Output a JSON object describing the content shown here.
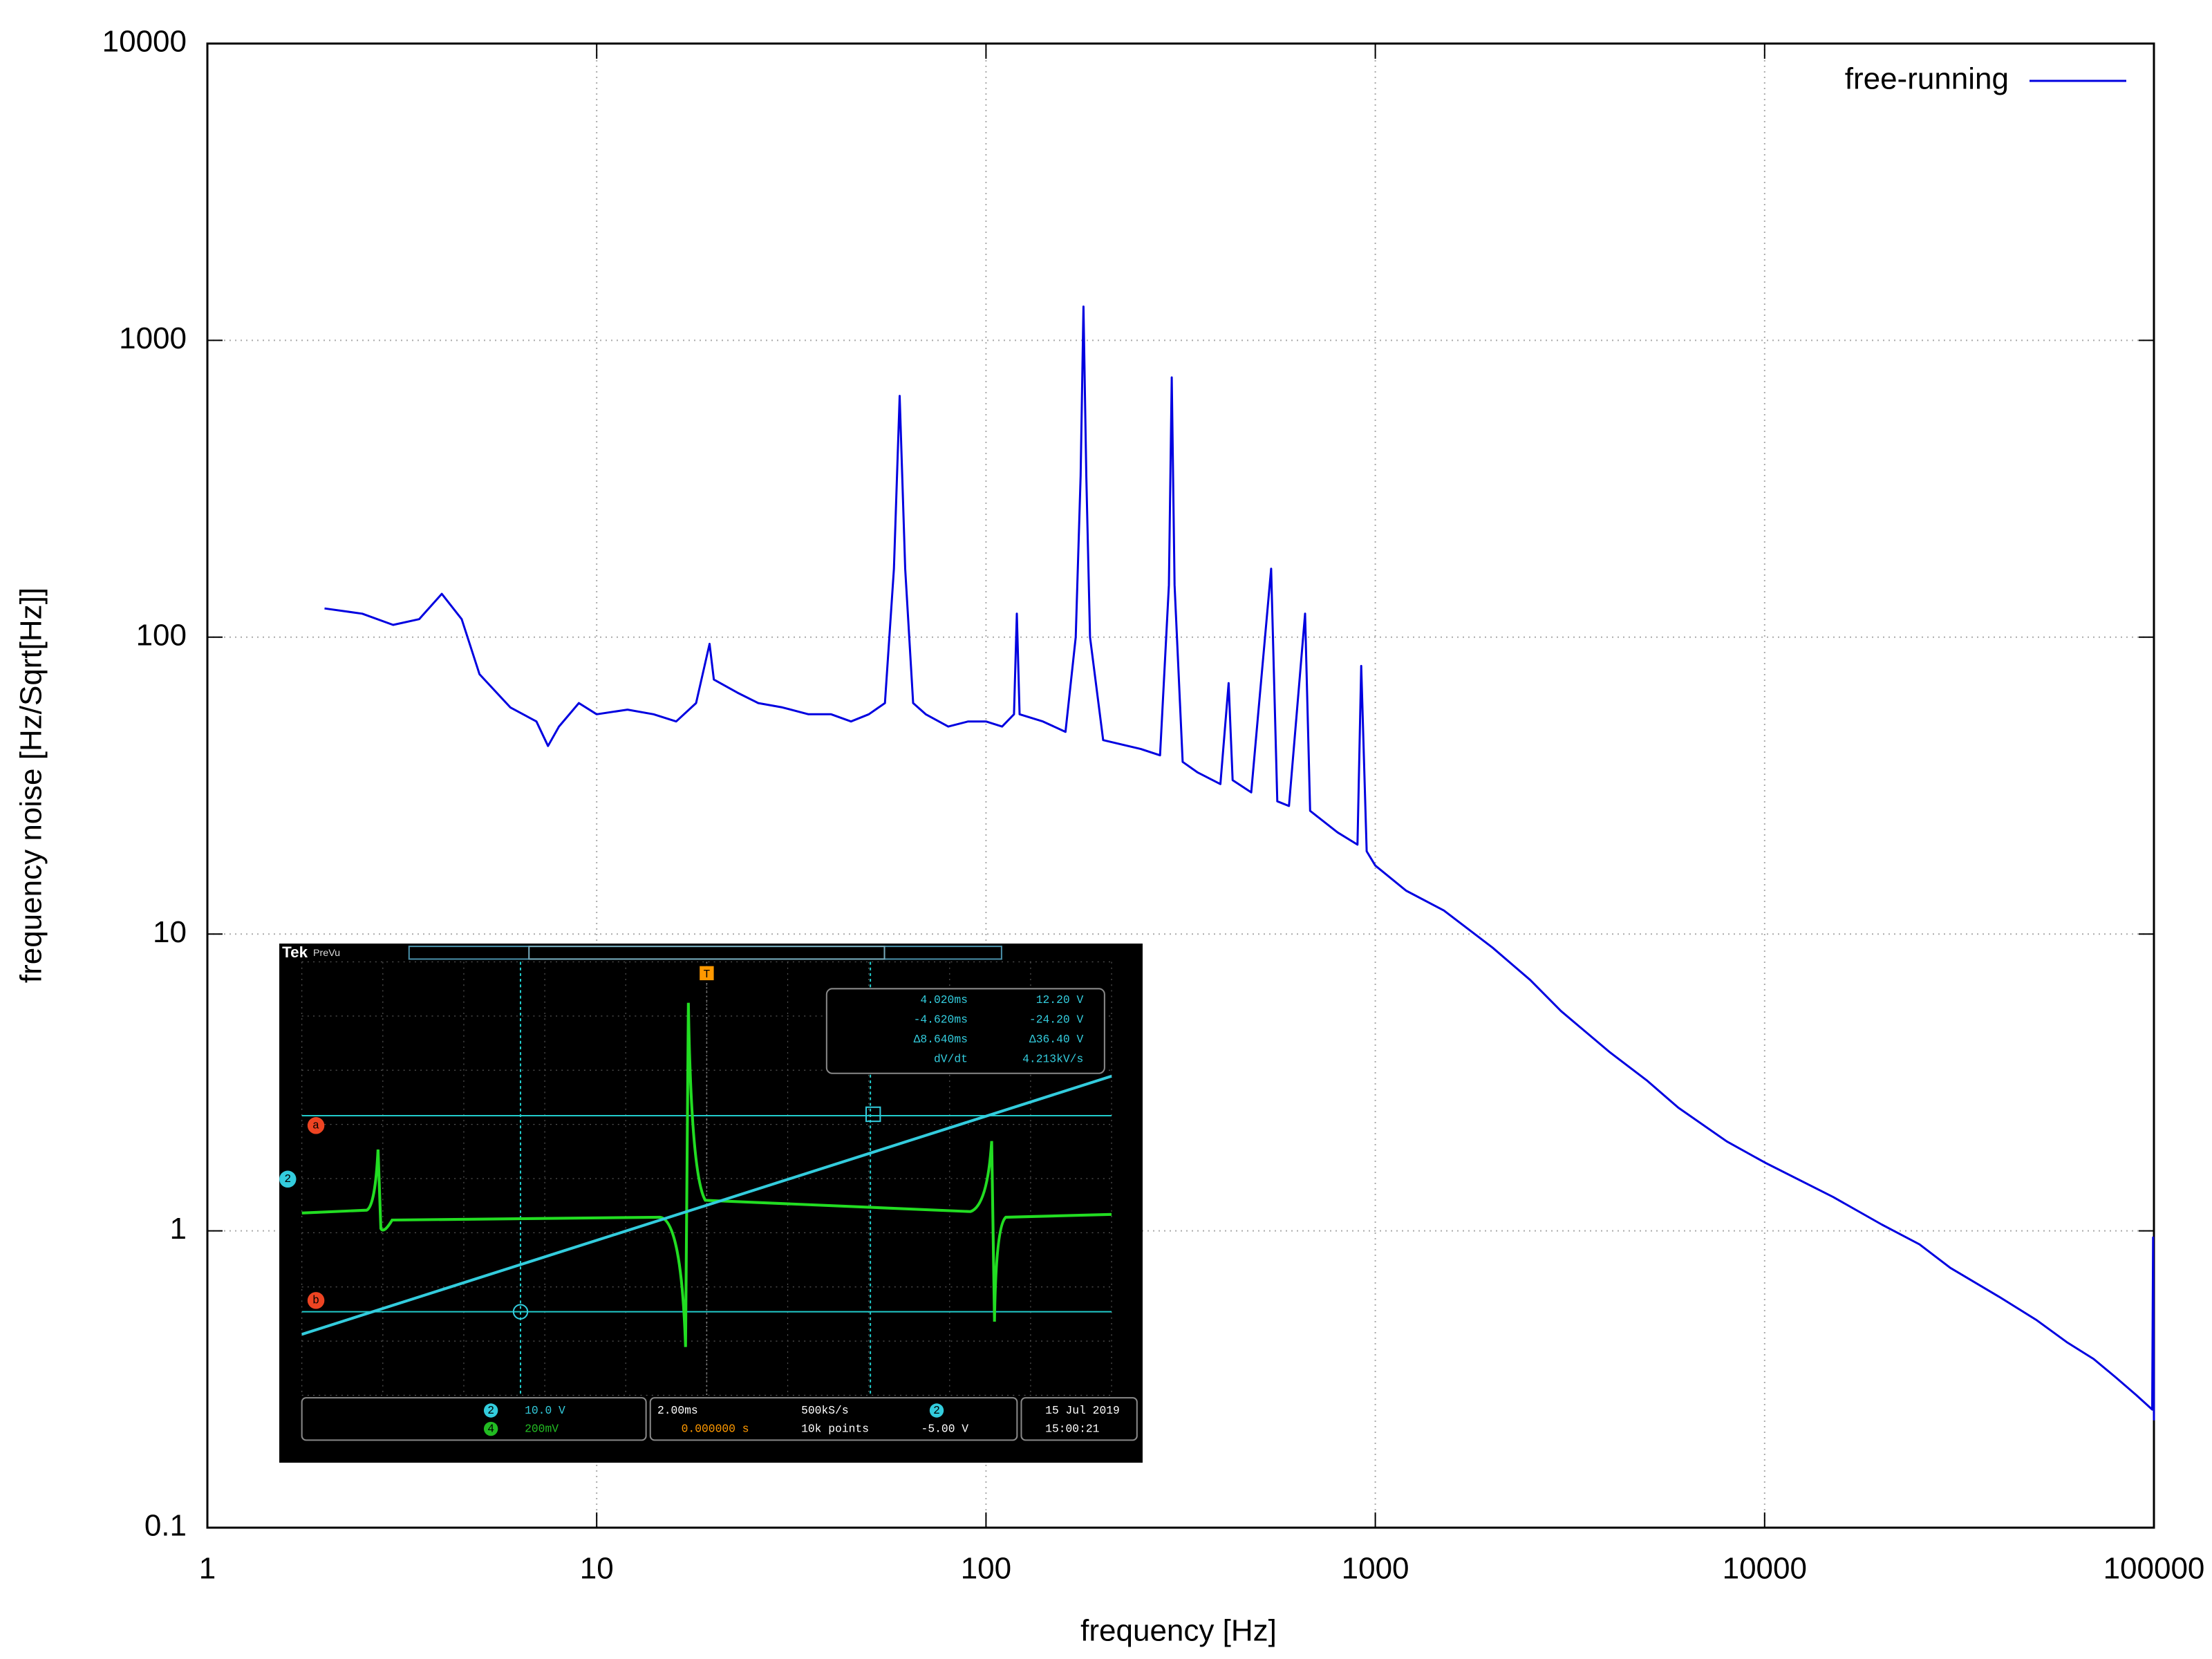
{
  "chart_data": {
    "type": "line",
    "xlabel": "frequency [Hz]",
    "ylabel": "frequency noise [Hz/Sqrt[Hz]]",
    "xscale": "log",
    "yscale": "log",
    "xlim": [
      1,
      100000
    ],
    "ylim": [
      0.1,
      10000
    ],
    "xticks": [
      1,
      10,
      100,
      1000,
      10000,
      100000
    ],
    "yticks": [
      0.1,
      1,
      10,
      100,
      1000,
      10000
    ],
    "grid": true,
    "legend": "top-right",
    "series": [
      {
        "name": "free-running",
        "color": "#0000e0",
        "x": [
          2,
          2.5,
          3,
          3.5,
          4,
          4.5,
          5,
          6,
          7,
          7.5,
          8,
          9,
          10,
          12,
          14,
          16,
          18,
          19.5,
          20,
          23,
          26,
          30,
          35,
          40,
          45,
          50,
          55,
          58,
          60,
          62,
          65,
          70,
          80,
          90,
          100,
          110,
          118,
          120,
          122,
          140,
          160,
          170,
          175,
          178,
          181,
          185,
          200,
          250,
          280,
          295,
          300,
          305,
          320,
          350,
          400,
          420,
          430,
          480,
          500,
          540,
          560,
          600,
          660,
          680,
          800,
          900,
          920,
          950,
          1000,
          1200,
          1500,
          2000,
          2500,
          3000,
          4000,
          5000,
          6000,
          8000,
          10000,
          15000,
          20000,
          25000,
          30000,
          40000,
          50000,
          60000,
          70000,
          80000,
          90000,
          99000,
          99500,
          100000
        ],
        "values": [
          125,
          120,
          110,
          115,
          140,
          115,
          75,
          58,
          52,
          43,
          50,
          60,
          55,
          57,
          55,
          52,
          60,
          95,
          72,
          65,
          60,
          58,
          55,
          55,
          52,
          55,
          60,
          170,
          650,
          170,
          60,
          55,
          50,
          52,
          52,
          50,
          55,
          120,
          55,
          52,
          48,
          100,
          350,
          1300,
          350,
          100,
          45,
          42,
          40,
          150,
          750,
          150,
          38,
          35,
          32,
          70,
          33,
          30,
          55,
          170,
          28,
          27,
          120,
          26,
          22,
          20,
          80,
          19,
          17,
          14,
          12,
          9,
          7,
          5.5,
          4,
          3.2,
          2.6,
          2,
          1.7,
          1.3,
          1.05,
          0.9,
          0.75,
          0.6,
          0.5,
          0.42,
          0.37,
          0.32,
          0.28,
          0.25,
          0.95,
          0.23
        ]
      }
    ]
  },
  "inset": {
    "brand": "Tek",
    "mode": "PreVu",
    "trigger": "T",
    "cursor_a": "a",
    "cursor_b": "b",
    "channel_2": "2",
    "channel_4": "4",
    "readout": [
      "4.020ms",
      "12.20 V",
      "-4.620ms",
      "-24.20 V",
      "Δ8.640ms",
      "Δ36.40 V",
      "dV/dt",
      "4.213kV/s"
    ],
    "ch2_scale": "10.0 V",
    "ch4_scale": "200mV",
    "timebase": "2.00ms",
    "sample_rate": "500kS/s",
    "trigger_pos": "0.000000 s",
    "record": "10k points",
    "trigger_level": "-5.00 V",
    "date": "15 Jul  2019",
    "time": "15:00:21"
  }
}
